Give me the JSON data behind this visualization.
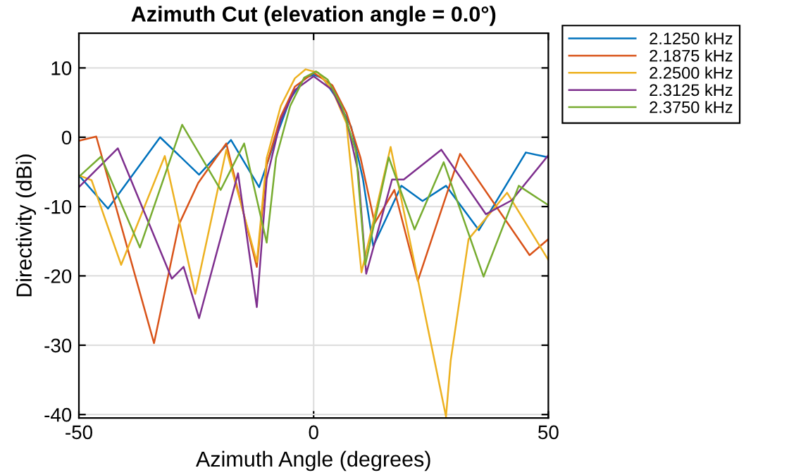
{
  "chart_data": {
    "type": "line",
    "title": "Azimuth Cut (elevation angle = 0.0°)",
    "xlabel": "Azimuth Angle (degrees)",
    "ylabel": "Directivity (dBi)",
    "xlim": [
      -50,
      50
    ],
    "xticks": [
      -50,
      0,
      50
    ],
    "ylim": [
      -40.5,
      15
    ],
    "yticks": [
      -40,
      -30,
      -20,
      -10,
      0,
      10
    ],
    "grid": true,
    "legend": "top right",
    "marker": "none",
    "line_style": "solid",
    "series": [
      {
        "name": "2.1250 kHz",
        "color": "#0072bd",
        "x": [
          -50,
          -43.8,
          -32.7,
          -24.4,
          -17.6,
          -11.6,
          -8,
          -5,
          -2,
          0,
          2,
          5,
          8,
          10.5,
          12.7,
          18.7,
          23.2,
          28.2,
          35.2,
          45.2,
          50
        ],
        "values": [
          -5.5,
          -10.3,
          0,
          -5.4,
          -0.4,
          -7.2,
          0,
          5.5,
          8.5,
          9,
          8.5,
          5.5,
          1.5,
          -6,
          -15.7,
          -7,
          -9.2,
          -7,
          -13.4,
          -2.2,
          -2.9
        ]
      },
      {
        "name": "2.1875 kHz",
        "color": "#d95319",
        "x": [
          -50,
          -46.3,
          -34,
          -28.7,
          -24.6,
          -18.6,
          -12.1,
          -10,
          -7,
          -4,
          0,
          4,
          7,
          10,
          13,
          17.2,
          22.2,
          31.2,
          46,
          50
        ],
        "values": [
          -0.5,
          0.1,
          -29.7,
          -12.6,
          -6.6,
          -0.9,
          -18.7,
          -4,
          3,
          7.3,
          9.3,
          7.5,
          3.5,
          -3,
          -12.4,
          -7.6,
          -20.7,
          -2.4,
          -17,
          -14.7
        ]
      },
      {
        "name": "2.2500 kHz",
        "color": "#edb120",
        "x": [
          -50,
          -47.3,
          -41,
          -31.7,
          -25.2,
          -18.6,
          -12.1,
          -10,
          -7,
          -4,
          -1.7,
          1,
          4,
          7,
          10.2,
          16.4,
          28.2,
          29.2,
          33,
          41.2,
          50
        ],
        "values": [
          -5.5,
          -6.2,
          -18.4,
          -2.7,
          -22.6,
          -1.8,
          -18,
          -3,
          4.5,
          8.5,
          9.8,
          9.3,
          6.8,
          2,
          -19.5,
          -1.4,
          -40.3,
          -32.2,
          -14.7,
          -8,
          -17.7
        ]
      },
      {
        "name": "2.3125 kHz",
        "color": "#7e2f8e",
        "x": [
          -50,
          -41.7,
          -30.2,
          -27.7,
          -24.4,
          -16.1,
          -12.1,
          -10,
          -7,
          -4,
          0,
          4,
          7,
          9.5,
          11.2,
          16.7,
          19.2,
          27.2,
          36.7,
          42.2,
          50
        ],
        "values": [
          -7.2,
          -1.6,
          -20.4,
          -18.7,
          -26.1,
          -5.2,
          -24.5,
          -6,
          2.5,
          6.8,
          8.8,
          6.8,
          2.5,
          -5,
          -19.7,
          -6.1,
          -6.1,
          -1.8,
          -11.1,
          -9.1,
          -2.6
        ]
      },
      {
        "name": "2.3750 kHz",
        "color": "#77ac30",
        "x": [
          -50,
          -45.3,
          -37,
          -28,
          -19.8,
          -14.8,
          -10,
          -8,
          -5,
          -2,
          0.5,
          3,
          6,
          9,
          11,
          16,
          21.5,
          27.7,
          36.2,
          43.7,
          50
        ],
        "values": [
          -5.7,
          -2.8,
          -15.9,
          1.8,
          -7.6,
          -0.9,
          -15.2,
          -3,
          4.5,
          8.6,
          9.5,
          8.3,
          4.5,
          -2,
          -18.4,
          -2.9,
          -13.3,
          -3.6,
          -20.1,
          -7,
          -9.8
        ]
      }
    ]
  }
}
